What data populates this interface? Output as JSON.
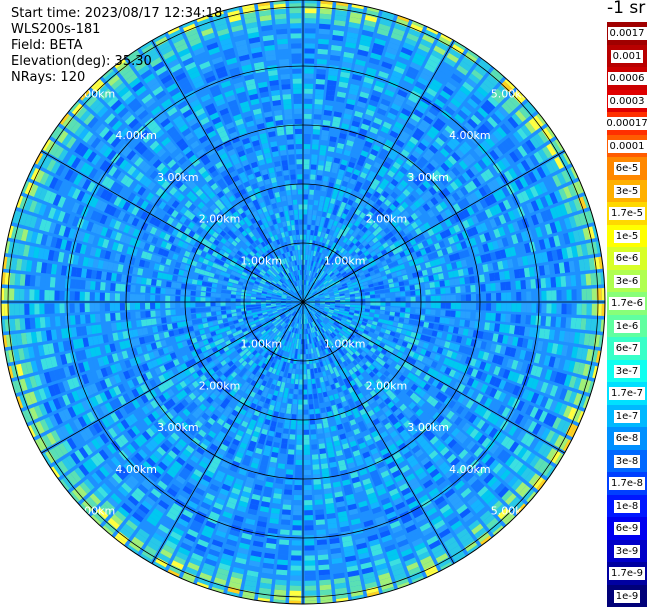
{
  "header": {
    "start_time": "Start time: 2023/08/17 12:34:18",
    "instrument": "WLS200s-181",
    "field": "Field: BETA",
    "elevation": "Elevation(deg): 35.30",
    "nrays": "NRays: 120"
  },
  "range_rings": {
    "labels": [
      "1.00km",
      "2.00km",
      "3.00km",
      "4.00km",
      "5.00km"
    ],
    "radii_km": [
      1,
      2,
      3,
      4,
      5
    ]
  },
  "colorbar": {
    "unit_label": "-1 sr",
    "entries": [
      {
        "label": "0.0017",
        "color": "#a00000"
      },
      {
        "label": "0.001",
        "color": "#b80000"
      },
      {
        "label": "0.0006",
        "color": "#cc0000"
      },
      {
        "label": "0.0003",
        "color": "#e00000"
      },
      {
        "label": "0.00017",
        "color": "#ff3000"
      },
      {
        "label": "0.0001",
        "color": "#ff5c00"
      },
      {
        "label": "6e-5",
        "color": "#ff8800"
      },
      {
        "label": "3e-5",
        "color": "#ffb000"
      },
      {
        "label": "1.7e-5",
        "color": "#ffd800"
      },
      {
        "label": "1e-5",
        "color": "#ffff00"
      },
      {
        "label": "6e-6",
        "color": "#d8ff28"
      },
      {
        "label": "3e-6",
        "color": "#b0ff50"
      },
      {
        "label": "1.7e-6",
        "color": "#88ff78"
      },
      {
        "label": "1e-6",
        "color": "#60ffa0"
      },
      {
        "label": "6e-7",
        "color": "#38ffc8"
      },
      {
        "label": "3e-7",
        "color": "#10fff0"
      },
      {
        "label": "1.7e-7",
        "color": "#00e0ff"
      },
      {
        "label": "1e-7",
        "color": "#00b8ff"
      },
      {
        "label": "6e-8",
        "color": "#0090ff"
      },
      {
        "label": "3e-8",
        "color": "#0068ff"
      },
      {
        "label": "1.7e-8",
        "color": "#0040ff"
      },
      {
        "label": "1e-8",
        "color": "#0018ff"
      },
      {
        "label": "6e-9",
        "color": "#0000f0"
      },
      {
        "label": "3e-9",
        "color": "#0000c8"
      },
      {
        "label": "1.7e-9",
        "color": "#0000a0"
      },
      {
        "label": "1e-9",
        "color": "#000078"
      }
    ]
  },
  "colors": {
    "background": "#ffffff",
    "grid": "#000000",
    "ring_label": "#ffffff",
    "ray_gap": "#ffffff",
    "field_dominant": "#1e90ff"
  }
}
